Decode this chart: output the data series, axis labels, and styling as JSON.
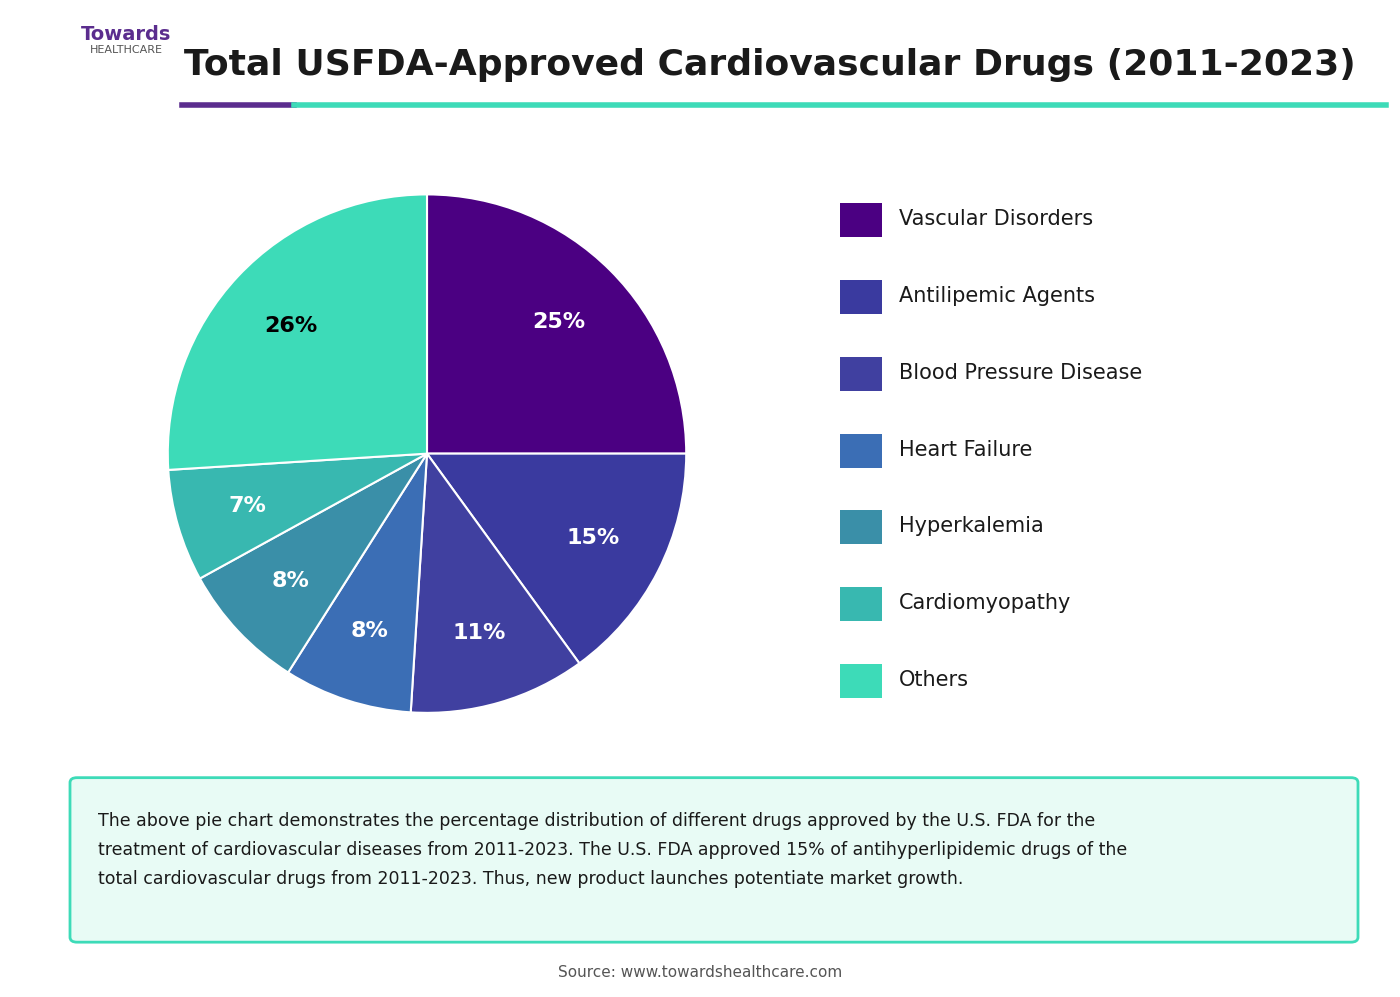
{
  "title": "Total USFDA-Approved Cardiovascular Drugs (2011-2023)",
  "labels": [
    "Vascular Disorders",
    "Antilipemic Agents",
    "Blood Pressure Disease",
    "Heart Failure",
    "Hyperkalemia",
    "Cardiomyopathy",
    "Others"
  ],
  "values": [
    25,
    15,
    11,
    8,
    8,
    7,
    26
  ],
  "colors": [
    "#4B0082",
    "#3A3A9F",
    "#4040A0",
    "#3B6EB5",
    "#3A8FA8",
    "#38B8B0",
    "#3DDBB8"
  ],
  "startangle": 90,
  "label_colors": [
    "white",
    "white",
    "white",
    "white",
    "white",
    "white",
    "black"
  ],
  "source_text": "Source: www.towardshealthcare.com",
  "annotation_text": "The above pie chart demonstrates the percentage distribution of different drugs approved by the U.S. FDA for the\ntreatment of cardiovascular diseases from 2011-2023. The U.S. FDA approved 15% of antihyperlipidemic drugs of the\ntotal cardiovascular drugs from 2011-2023. Thus, new product launches potentiate market growth.",
  "header_line1_color": "#5B2D8E",
  "header_line2_color": "#3DDBB8",
  "bg_color": "#FFFFFF",
  "annotation_bg_color": "#E8FBF5",
  "annotation_border_color": "#3DDBB8"
}
